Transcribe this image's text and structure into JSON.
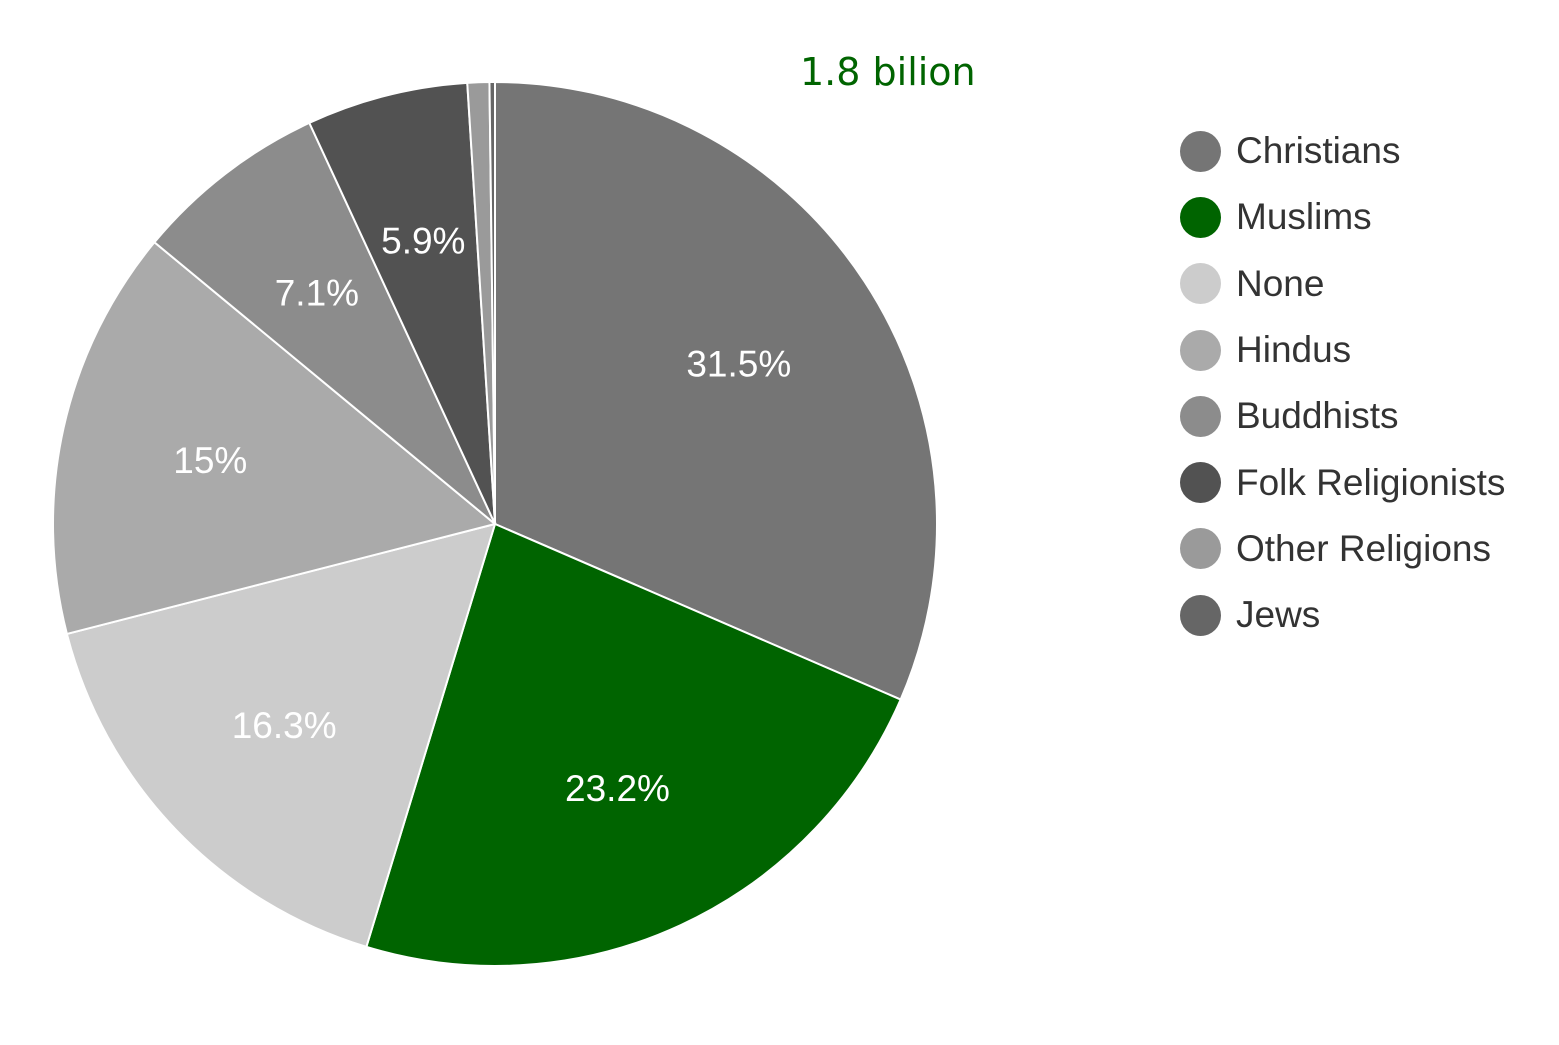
{
  "chart_data": {
    "type": "pie",
    "title": "",
    "annotation": "1.8 bilion",
    "legend_position": "right",
    "slices": [
      {
        "name": "Christians",
        "value": 31.5,
        "label": "31.5%",
        "color": "#757575"
      },
      {
        "name": "Muslims",
        "value": 23.2,
        "label": "23.2%",
        "color": "#006400"
      },
      {
        "name": "None",
        "value": 16.3,
        "label": "16.3%",
        "color": "#cccccc"
      },
      {
        "name": "Hindus",
        "value": 15.0,
        "label": "15%",
        "color": "#aaaaaa"
      },
      {
        "name": "Buddhists",
        "value": 7.1,
        "label": "7.1%",
        "color": "#8c8c8c"
      },
      {
        "name": "Folk Religionists",
        "value": 5.9,
        "label": "5.9%",
        "color": "#525252"
      },
      {
        "name": "Other Religions",
        "value": 0.8,
        "label": "",
        "color": "#9a9a9a"
      },
      {
        "name": "Jews",
        "value": 0.2,
        "label": "",
        "color": "#666666"
      }
    ]
  }
}
